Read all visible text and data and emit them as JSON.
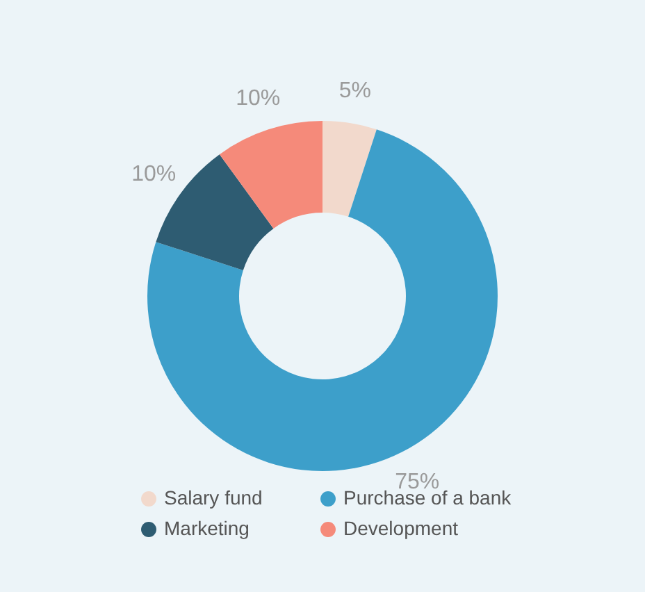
{
  "chart_data": {
    "type": "donut",
    "categories": [
      "Salary fund",
      "Purchase of a bank",
      "Marketing",
      "Development"
    ],
    "values": [
      5,
      75,
      10,
      10
    ],
    "colors": [
      "#f2d9cc",
      "#3d9fca",
      "#2e5c72",
      "#f58a7a"
    ],
    "value_labels": [
      "5%",
      "75%",
      "10%",
      "10%"
    ],
    "legend": "bottom"
  }
}
